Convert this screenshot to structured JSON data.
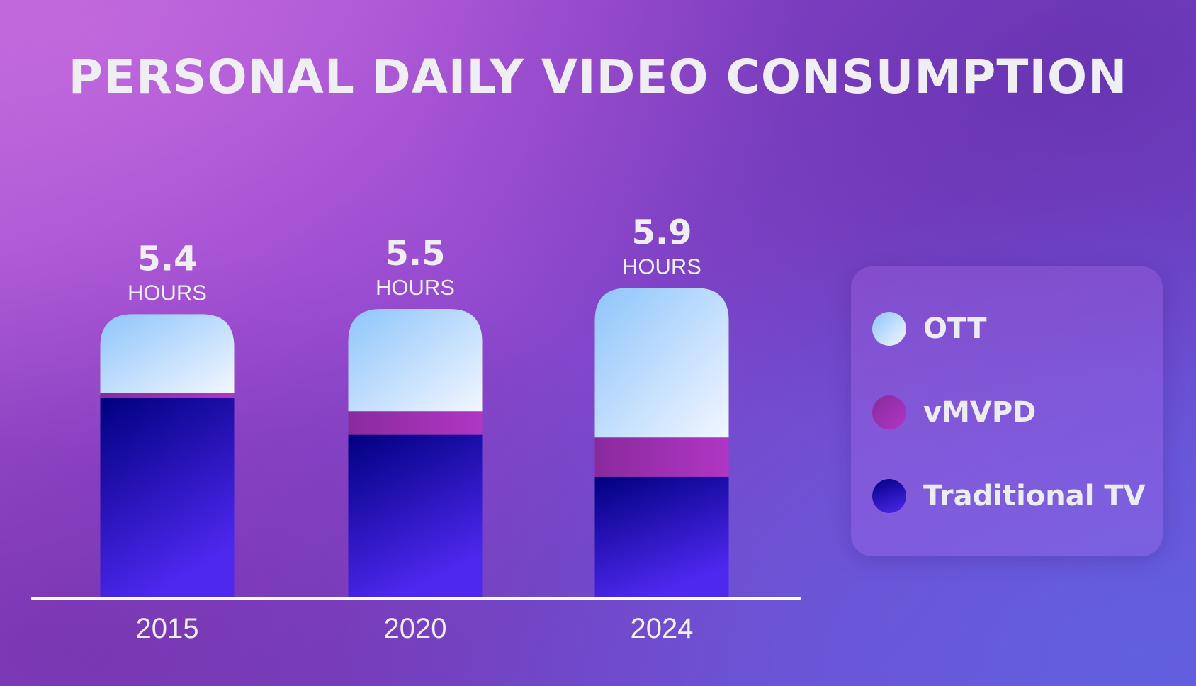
{
  "title": "PERSONAL DAILY VIDEO CONSUMPTION",
  "unit_label": "HOURS",
  "colors": {
    "ott_top": "#8ec5fb",
    "ott_bottom": "#f2f6ff",
    "vmvpd": "#b036c4",
    "tv_top": "#000080",
    "tv_bottom": "#4f28f0",
    "axis": "#ffffff",
    "text": "#eeeef4"
  },
  "chart_data": {
    "type": "bar",
    "stacked": true,
    "categories": [
      "2015",
      "2020",
      "2024"
    ],
    "totals": [
      "5.4",
      "5.5",
      "5.9"
    ],
    "series": [
      {
        "name": "Traditional TV",
        "key": "tv",
        "values": [
          3.8,
          3.1,
          2.3
        ]
      },
      {
        "name": "vMVPD",
        "key": "vmvpd",
        "values": [
          0.1,
          0.45,
          0.75
        ]
      },
      {
        "name": "OTT",
        "key": "ott",
        "values": [
          1.5,
          1.95,
          2.85
        ]
      }
    ],
    "ylim": [
      0,
      6.3
    ],
    "grid": false,
    "legend_position": "right"
  },
  "legend": [
    {
      "label": "OTT",
      "key": "ott"
    },
    {
      "label": "vMVPD",
      "key": "vmvpd"
    },
    {
      "label": "Traditional TV",
      "key": "tv"
    }
  ]
}
